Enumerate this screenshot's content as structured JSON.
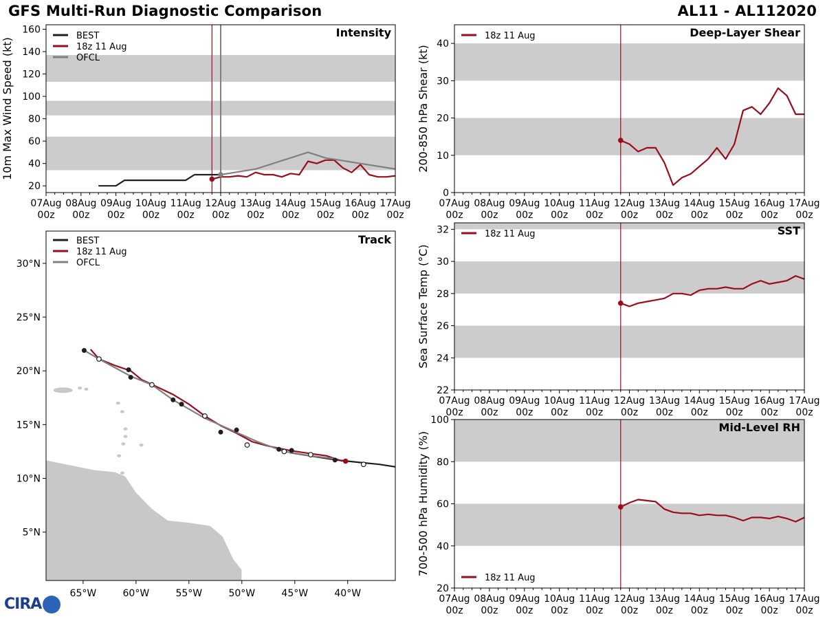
{
  "header": {
    "title": "GFS Multi-Run Diagnostic Comparison",
    "storm_id": "AL11 - AL112020"
  },
  "logo": {
    "text": "CIRA",
    "icon": "globe-icon"
  },
  "time_axis": {
    "labels": [
      "07Aug\n00z",
      "08Aug\n00z",
      "09Aug\n00z",
      "10Aug\n00z",
      "11Aug\n00z",
      "12Aug\n00z",
      "13Aug\n00z",
      "14Aug\n00z",
      "15Aug\n00z",
      "16Aug\n00z",
      "17Aug\n00z"
    ],
    "init_day": 4.75
  },
  "colors": {
    "best": "#1f1f1f",
    "run": "#9b0d1c",
    "ofcl": "#808080",
    "band": "#cccccc",
    "land": "#c8c8c8"
  },
  "chart_data": [
    {
      "id": "intensity",
      "type": "line",
      "title": "Intensity",
      "ylabel": "10m Max Wind Speed (kt)",
      "ylim": [
        14,
        164
      ],
      "yticks": [
        20,
        40,
        60,
        80,
        100,
        120,
        140,
        160
      ],
      "bands": [
        [
          34,
          64
        ],
        [
          83,
          96
        ],
        [
          113,
          137
        ]
      ],
      "legend": [
        "BEST",
        "18z 11 Aug",
        "OFCL"
      ],
      "series": [
        {
          "name": "BEST",
          "points": [
            [
              1.5,
              20
            ],
            [
              2,
              20
            ],
            [
              2.25,
              25
            ],
            [
              3,
              25
            ],
            [
              4,
              25
            ],
            [
              4.25,
              30
            ],
            [
              5,
              30
            ]
          ]
        },
        {
          "name": "18z 11 Aug",
          "points": [
            [
              4.75,
              26
            ],
            [
              5,
              28
            ],
            [
              5.25,
              28
            ],
            [
              5.5,
              29
            ],
            [
              5.75,
              28
            ],
            [
              6,
              32
            ],
            [
              6.25,
              30
            ],
            [
              6.5,
              30
            ],
            [
              6.75,
              28
            ],
            [
              7,
              31
            ],
            [
              7.25,
              30
            ],
            [
              7.5,
              42
            ],
            [
              7.75,
              40
            ],
            [
              8,
              43
            ],
            [
              8.25,
              43
            ],
            [
              8.5,
              36
            ],
            [
              8.75,
              32
            ],
            [
              9,
              39
            ],
            [
              9.25,
              30
            ],
            [
              9.5,
              28
            ],
            [
              9.75,
              28
            ],
            [
              10,
              29
            ]
          ]
        },
        {
          "name": "OFCL",
          "points": [
            [
              5,
              30
            ],
            [
              6,
              35
            ],
            [
              7.5,
              50
            ],
            [
              8,
              45
            ],
            [
              9,
              40
            ],
            [
              10,
              35
            ]
          ]
        }
      ],
      "markers": {
        "init_vline": 4.75,
        "ofcl_vline": 5.0
      }
    },
    {
      "id": "shear",
      "type": "line",
      "title": "Deep-Layer Shear",
      "ylabel": "200-850 hPa Shear (kt)",
      "ylim": [
        0,
        45
      ],
      "yticks": [
        0,
        10,
        20,
        30,
        40
      ],
      "bands": [
        [
          10,
          20
        ],
        [
          30,
          40
        ]
      ],
      "legend": [
        "18z 11 Aug"
      ],
      "series": [
        {
          "name": "18z 11 Aug",
          "points": [
            [
              4.75,
              14
            ],
            [
              5,
              13
            ],
            [
              5.25,
              11
            ],
            [
              5.5,
              12
            ],
            [
              5.75,
              12
            ],
            [
              6,
              8
            ],
            [
              6.25,
              2
            ],
            [
              6.5,
              4
            ],
            [
              6.75,
              5
            ],
            [
              7,
              7
            ],
            [
              7.25,
              9
            ],
            [
              7.5,
              12
            ],
            [
              7.75,
              9
            ],
            [
              8,
              13
            ],
            [
              8.25,
              22
            ],
            [
              8.5,
              23
            ],
            [
              8.75,
              21
            ],
            [
              9,
              24
            ],
            [
              9.25,
              28
            ],
            [
              9.5,
              26
            ],
            [
              9.75,
              21
            ],
            [
              10,
              21
            ]
          ]
        }
      ],
      "markers": {
        "init_vline": 4.75
      }
    },
    {
      "id": "sst",
      "type": "line",
      "title": "SST",
      "ylabel": "Sea Surface Temp (°C)",
      "ylim": [
        22,
        32.4
      ],
      "yticks": [
        22,
        24,
        26,
        28,
        30,
        32
      ],
      "bands": [
        [
          24,
          26
        ],
        [
          28,
          30
        ],
        [
          32,
          32.4
        ]
      ],
      "legend": [
        "18z 11 Aug"
      ],
      "series": [
        {
          "name": "18z 11 Aug",
          "points": [
            [
              4.75,
              27.4
            ],
            [
              5,
              27.2
            ],
            [
              5.25,
              27.4
            ],
            [
              5.5,
              27.5
            ],
            [
              5.75,
              27.6
            ],
            [
              6,
              27.7
            ],
            [
              6.25,
              28.0
            ],
            [
              6.5,
              28.0
            ],
            [
              6.75,
              27.9
            ],
            [
              7,
              28.2
            ],
            [
              7.25,
              28.3
            ],
            [
              7.5,
              28.3
            ],
            [
              7.75,
              28.4
            ],
            [
              8,
              28.3
            ],
            [
              8.25,
              28.3
            ],
            [
              8.5,
              28.6
            ],
            [
              8.75,
              28.8
            ],
            [
              9,
              28.6
            ],
            [
              9.25,
              28.7
            ],
            [
              9.5,
              28.8
            ],
            [
              9.75,
              29.1
            ],
            [
              10,
              28.9
            ]
          ]
        }
      ],
      "markers": {
        "init_vline": 4.75
      }
    },
    {
      "id": "rh",
      "type": "line",
      "title": "Mid-Level RH",
      "ylabel": "700-500 hPa Humidity (%)",
      "ylim": [
        20,
        100
      ],
      "yticks": [
        20,
        40,
        60,
        80,
        100
      ],
      "bands": [
        [
          40,
          60
        ],
        [
          80,
          100
        ]
      ],
      "legend": [
        "18z 11 Aug"
      ],
      "series": [
        {
          "name": "18z 11 Aug",
          "points": [
            [
              4.75,
              58.5
            ],
            [
              5,
              60.5
            ],
            [
              5.25,
              62
            ],
            [
              5.5,
              61.5
            ],
            [
              5.75,
              61
            ],
            [
              6,
              57.5
            ],
            [
              6.25,
              56
            ],
            [
              6.5,
              55.5
            ],
            [
              6.75,
              55.5
            ],
            [
              7,
              54.5
            ],
            [
              7.25,
              55
            ],
            [
              7.5,
              54.5
            ],
            [
              7.75,
              54.5
            ],
            [
              8,
              53.5
            ],
            [
              8.25,
              52
            ],
            [
              8.5,
              53.5
            ],
            [
              8.75,
              53.5
            ],
            [
              9,
              53
            ],
            [
              9.25,
              54
            ],
            [
              9.5,
              53
            ],
            [
              9.75,
              51.5
            ],
            [
              10,
              53.5
            ]
          ]
        }
      ],
      "markers": {
        "init_vline": 4.75
      }
    },
    {
      "id": "track",
      "type": "line",
      "title": "Track",
      "xlim": [
        -68.5,
        -35.5
      ],
      "ylim": [
        0.5,
        33
      ],
      "xticks": [
        -65,
        -60,
        -55,
        -50,
        -45,
        -40
      ],
      "xtick_labels": [
        "65°W",
        "60°W",
        "55°W",
        "50°W",
        "45°W",
        "40°W"
      ],
      "yticks": [
        5,
        10,
        15,
        20,
        25,
        30
      ],
      "ytick_labels": [
        "5°N",
        "10°N",
        "15°N",
        "20°N",
        "25°N",
        "30°N"
      ],
      "legend": [
        "BEST",
        "18z 11 Aug",
        "OFCL"
      ],
      "series": [
        {
          "name": "BEST",
          "points": [
            [
              -35,
              11.0
            ],
            [
              -37,
              11.3
            ],
            [
              -39,
              11.5
            ],
            [
              -41,
              11.7
            ],
            [
              -43,
              12.0
            ],
            [
              -45.5,
              12.4
            ]
          ],
          "dots": [
            [
              -41.2,
              11.7
            ],
            [
              -45.3,
              12.6
            ]
          ]
        },
        {
          "name": "18z 11 Aug",
          "points": [
            [
              -64.3,
              22.0
            ],
            [
              -63.5,
              21.1
            ],
            [
              -62,
              20.5
            ],
            [
              -60.5,
              20.0
            ],
            [
              -59.5,
              19.2
            ],
            [
              -58,
              18.5
            ],
            [
              -56.5,
              17.8
            ],
            [
              -55,
              16.9
            ],
            [
              -53.5,
              15.8
            ],
            [
              -52,
              14.9
            ],
            [
              -50.5,
              14.2
            ],
            [
              -49,
              13.4
            ],
            [
              -47.5,
              13.0
            ],
            [
              -45.5,
              12.6
            ],
            [
              -43.5,
              12.3
            ],
            [
              -42,
              12.1
            ],
            [
              -40.5,
              11.6
            ]
          ],
          "end_dot": [
            -40.2,
            11.6
          ]
        },
        {
          "name": "OFCL",
          "points": [
            [
              -64.9,
              21.9
            ],
            [
              -63.5,
              21.1
            ],
            [
              -60.5,
              19.5
            ],
            [
              -58.5,
              18.7
            ],
            [
              -56.5,
              17.3
            ],
            [
              -53.5,
              15.6
            ],
            [
              -51,
              14.5
            ],
            [
              -48.5,
              13.4
            ],
            [
              -46,
              12.5
            ],
            [
              -43.5,
              12.1
            ],
            [
              -41,
              11.8
            ]
          ],
          "open_dots": [
            [
              -63.5,
              21.1
            ],
            [
              -58.5,
              18.7
            ],
            [
              -53.5,
              15.8
            ],
            [
              -49.5,
              13.1
            ],
            [
              -46,
              12.5
            ],
            [
              -43.5,
              12.2
            ],
            [
              -38.5,
              11.3
            ]
          ],
          "filled_dots": [
            [
              -64.9,
              21.9
            ],
            [
              -60.7,
              20.1
            ],
            [
              -60.5,
              19.4
            ],
            [
              -56.5,
              17.3
            ],
            [
              -55.7,
              16.9
            ],
            [
              -52,
              14.3
            ],
            [
              -50.5,
              14.5
            ],
            [
              -46.5,
              12.7
            ]
          ]
        }
      ]
    }
  ]
}
